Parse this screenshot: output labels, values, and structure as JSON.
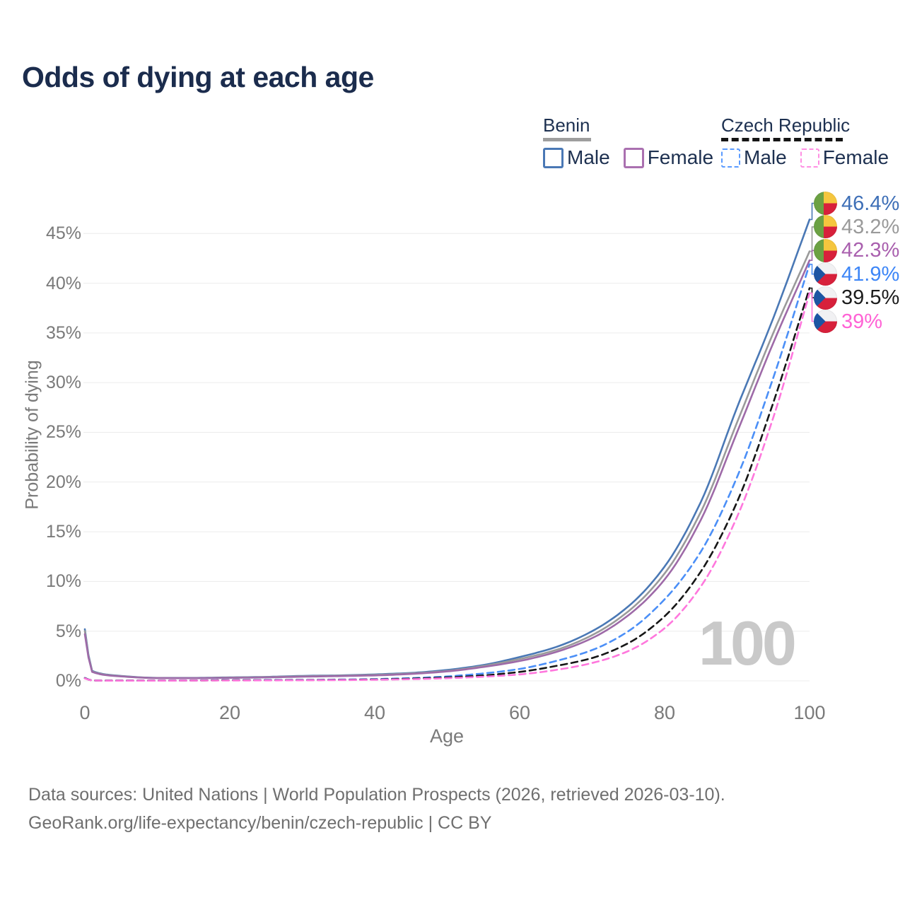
{
  "title": "Odds of dying at each age",
  "legend": {
    "groups": [
      {
        "name": "Benin",
        "line_style": "solid",
        "underline_color": "#9e9e9e",
        "items": [
          {
            "label": "Male",
            "color": "#4a78b5",
            "dashed": false
          },
          {
            "label": "Female",
            "color": "#aa70b0",
            "dashed": false
          }
        ]
      },
      {
        "name": "Czech Republic",
        "line_style": "dashed",
        "underline_color": "#151515",
        "items": [
          {
            "label": "Male",
            "color": "#5b9bff",
            "dashed": true
          },
          {
            "label": "Female",
            "color": "#ff8fe3",
            "dashed": true
          }
        ]
      }
    ]
  },
  "footer": {
    "line1": "Data sources: United Nations | World Population Prospects (2026, retrieved 2026-03-10).",
    "line2": "GeoRank.org/life-expectancy/benin/czech-republic | CC BY"
  },
  "chart_data": {
    "type": "line",
    "title": "Odds of dying at each age",
    "xlabel": "Age",
    "ylabel": "Probability of dying",
    "xlim": [
      0,
      100
    ],
    "ylim": [
      0,
      48
    ],
    "grid": "horizontal",
    "grid_color": "#ececec",
    "watermark_text": "100",
    "x_ticks": [
      0,
      20,
      40,
      60,
      80,
      100
    ],
    "y_ticks": {
      "values": [
        0,
        5,
        10,
        15,
        20,
        25,
        30,
        35,
        40,
        45
      ],
      "labels": [
        "0%",
        "5%",
        "10%",
        "15%",
        "20%",
        "25%",
        "30%",
        "35%",
        "40%",
        "45%"
      ]
    },
    "ages": [
      0,
      1,
      5,
      10,
      15,
      20,
      25,
      30,
      35,
      40,
      45,
      50,
      55,
      60,
      65,
      70,
      75,
      80,
      85,
      90,
      95,
      100
    ],
    "series": [
      {
        "name": "Benin - Male",
        "country": "Benin",
        "sex": "Male",
        "style": "solid",
        "color": "#4a78b5",
        "label_color": "#3e6fb7",
        "flag": "benin",
        "end_label": "46.4%",
        "values": [
          5.2,
          1.0,
          0.5,
          0.3,
          0.3,
          0.35,
          0.4,
          0.5,
          0.55,
          0.65,
          0.8,
          1.1,
          1.6,
          2.4,
          3.4,
          5.0,
          7.5,
          11.5,
          18.0,
          27.5,
          36.5,
          46.4
        ]
      },
      {
        "name": "Benin - Both sexes",
        "country": "Benin",
        "sex": "Both",
        "style": "solid",
        "color": "#9a9a9a",
        "label_color": "#9a9a9a",
        "flag": "benin",
        "end_label": "43.2%",
        "values": [
          5.0,
          0.95,
          0.48,
          0.29,
          0.28,
          0.33,
          0.38,
          0.46,
          0.52,
          0.6,
          0.75,
          1.0,
          1.5,
          2.2,
          3.1,
          4.6,
          7.0,
          10.8,
          17.0,
          26.0,
          35.0,
          43.2
        ]
      },
      {
        "name": "Benin - Female",
        "country": "Benin",
        "sex": "Female",
        "style": "solid",
        "color": "#9e6aa8",
        "label_color": "#a95fae",
        "flag": "benin",
        "end_label": "42.3%",
        "values": [
          4.7,
          0.9,
          0.45,
          0.28,
          0.27,
          0.3,
          0.35,
          0.42,
          0.48,
          0.55,
          0.7,
          0.95,
          1.4,
          2.0,
          2.9,
          4.3,
          6.6,
          10.2,
          16.2,
          25.0,
          34.0,
          42.3
        ]
      },
      {
        "name": "Czech Republic - Male",
        "country": "Czech Republic",
        "sex": "Male",
        "style": "dashed",
        "color": "#4b8ff7",
        "label_color": "#3d86f7",
        "flag": "czech",
        "end_label": "41.9%",
        "values": [
          0.3,
          0.05,
          0.03,
          0.03,
          0.05,
          0.08,
          0.09,
          0.1,
          0.13,
          0.18,
          0.28,
          0.45,
          0.75,
          1.2,
          2.0,
          3.1,
          5.0,
          8.2,
          13.0,
          20.5,
          30.5,
          41.9
        ]
      },
      {
        "name": "Czech Republic - Both sexes",
        "country": "Czech Republic",
        "sex": "Both",
        "style": "dashed",
        "color": "#161616",
        "label_color": "#1c1c1c",
        "flag": "czech",
        "end_label": "39.5%",
        "values": [
          0.28,
          0.04,
          0.025,
          0.025,
          0.04,
          0.06,
          0.07,
          0.08,
          0.1,
          0.14,
          0.22,
          0.35,
          0.55,
          0.9,
          1.5,
          2.3,
          3.8,
          6.5,
          11.0,
          18.0,
          28.0,
          39.5
        ]
      },
      {
        "name": "Czech Republic - Female",
        "country": "Czech Republic",
        "sex": "Female",
        "style": "dashed",
        "color": "#ff77dd",
        "label_color": "#ff63d5",
        "flag": "czech",
        "end_label": "39%",
        "values": [
          0.25,
          0.04,
          0.02,
          0.02,
          0.03,
          0.04,
          0.05,
          0.06,
          0.08,
          0.11,
          0.17,
          0.27,
          0.42,
          0.65,
          1.1,
          1.8,
          3.0,
          5.3,
          9.5,
          16.5,
          26.5,
          39.0
        ]
      }
    ]
  }
}
